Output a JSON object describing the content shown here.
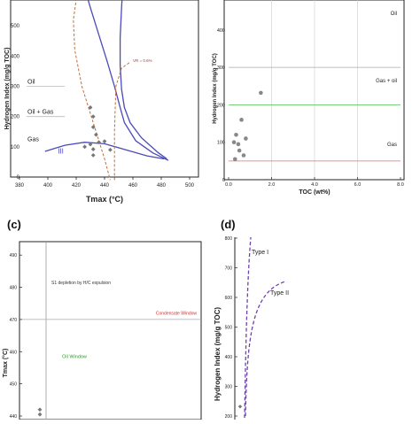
{
  "panels": {
    "a": {
      "label": "",
      "xlabel": "Tmax (°C)",
      "ylabel": "Hydrogen Index (mg/g TOC)"
    },
    "b": {
      "label": "",
      "xlabel": "TOC (wt%)",
      "ylabel": "Hydrogen Index (mg/g TOC)"
    },
    "c": {
      "label": "(c)",
      "xlabel": "",
      "ylabel": "Tmax (°C)"
    },
    "d": {
      "label": "(d)",
      "xlabel": "",
      "ylabel": "Hydrogen Index (mg/g TOC)"
    }
  },
  "chart_data": [
    {
      "id": "a",
      "type": "scatter",
      "title": "",
      "xlabel": "Tmax (°C)",
      "ylabel": "Hydrogen Index (mg/g TOC)",
      "xlim": [
        380,
        500
      ],
      "ylim": [
        0,
        600
      ],
      "xticks": [
        380,
        400,
        420,
        440,
        460,
        480,
        500
      ],
      "yticks": [
        0,
        100,
        200,
        300,
        400,
        500
      ],
      "points": [
        {
          "x": 430,
          "y": 230
        },
        {
          "x": 432,
          "y": 200
        },
        {
          "x": 432,
          "y": 165
        },
        {
          "x": 434,
          "y": 140
        },
        {
          "x": 436,
          "y": 115
        },
        {
          "x": 440,
          "y": 118
        },
        {
          "x": 430,
          "y": 108
        },
        {
          "x": 426,
          "y": 100
        },
        {
          "x": 432,
          "y": 92
        },
        {
          "x": 444,
          "y": 90
        },
        {
          "x": 432,
          "y": 72
        }
      ],
      "zone_labels": [
        "Oil",
        "Oil + Gas",
        "Gas"
      ],
      "type_label": "III",
      "vr_label": "VR = 0.6%",
      "colors": {
        "envelope": "#4a4aba",
        "vr": "#c0703a",
        "points": "#777777"
      }
    },
    {
      "id": "b",
      "type": "scatter",
      "title": "",
      "xlabel": "TOC (wt%)",
      "ylabel": "Hydrogen Index (mg/g TOC)",
      "xlim": [
        0,
        8
      ],
      "ylim": [
        0,
        480
      ],
      "xticks": [
        "0.0",
        "2.0",
        "4.0",
        "6.0",
        "8.0"
      ],
      "yticks": [
        0,
        100,
        200,
        300,
        400
      ],
      "points": [
        {
          "x": 0.25,
          "y": 100
        },
        {
          "x": 0.35,
          "y": 120
        },
        {
          "x": 0.45,
          "y": 95
        },
        {
          "x": 0.5,
          "y": 78
        },
        {
          "x": 0.6,
          "y": 160
        },
        {
          "x": 0.7,
          "y": 65
        },
        {
          "x": 0.8,
          "y": 110
        },
        {
          "x": 1.5,
          "y": 232
        },
        {
          "x": 0.3,
          "y": 55
        }
      ],
      "zones": [
        {
          "label": "Oil",
          "y": 300,
          "color": "#aaaaaa"
        },
        {
          "label": "Gas + oil",
          "y": 200,
          "color": "#66cc66"
        },
        {
          "label": "Gas",
          "y": 50,
          "color": "#e07070"
        }
      ]
    },
    {
      "id": "c",
      "type": "scatter",
      "title": "",
      "xlabel": "",
      "ylabel": "Tmax (°C)",
      "ylim": [
        440,
        495
      ],
      "yticks": [
        440,
        450,
        460,
        470,
        480,
        490
      ],
      "points": [
        {
          "x": 0.1,
          "y": 442
        },
        {
          "x": 0.1,
          "y": 440.5
        }
      ],
      "zones": [
        {
          "label": "S1 depletion by H/C expulsion",
          "color": "#333333"
        },
        {
          "label": "Condensate Window",
          "color": "#d03030"
        },
        {
          "label": "Oil Window",
          "color": "#2a9a2a"
        }
      ],
      "boundary_y": 470
    },
    {
      "id": "d",
      "type": "line",
      "title": "",
      "xlabel": "",
      "ylabel": "Hydrogen Index (mg/g TOC)",
      "ylim": [
        200,
        800
      ],
      "yticks": [
        200,
        300,
        400,
        500,
        600,
        700,
        800
      ],
      "series": [
        {
          "name": "Type I",
          "color": "#7040b0"
        },
        {
          "name": "Type II",
          "color": "#7040b0"
        }
      ],
      "points": [
        {
          "x": 0.1,
          "y": 232
        }
      ]
    }
  ]
}
